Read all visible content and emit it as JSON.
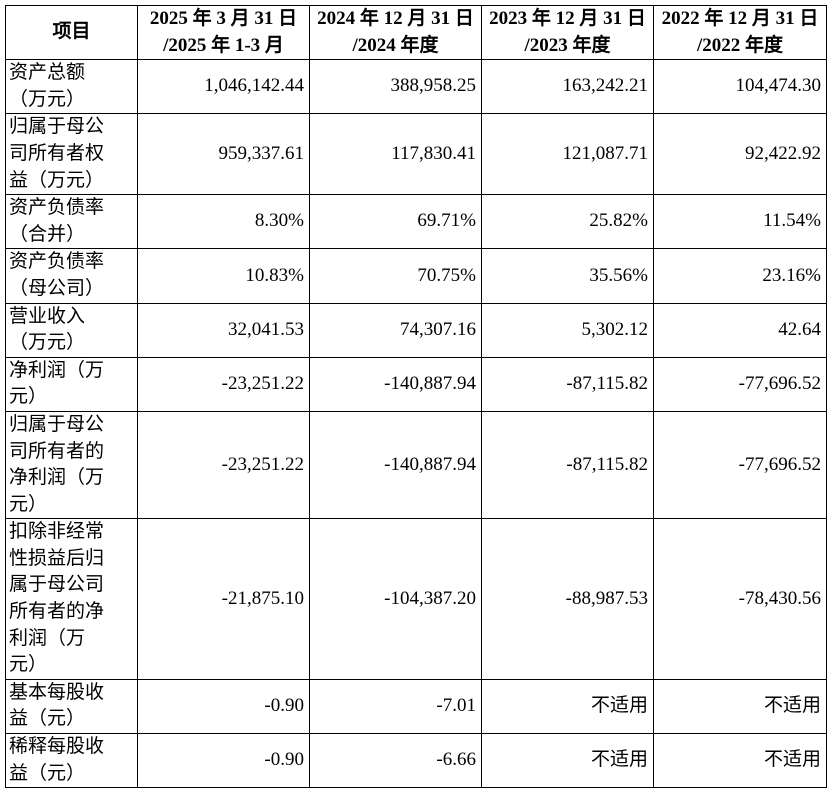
{
  "table": {
    "header": [
      [
        "项目"
      ],
      [
        "2025 年 3 月 31 日",
        "/2025 年 1-3 月"
      ],
      [
        "2024 年 12 月 31 日",
        "/2024 年度"
      ],
      [
        "2023 年 12 月 31 日",
        "/2023 年度"
      ],
      [
        "2022 年 12 月 31 日",
        "/2022 年度"
      ]
    ],
    "rows": [
      [
        "资产总额（万元）",
        "1,046,142.44",
        "388,958.25",
        "163,242.21",
        "104,474.30"
      ],
      [
        "归属于母公司所有者权益（万元）",
        "959,337.61",
        "117,830.41",
        "121,087.71",
        "92,422.92"
      ],
      [
        "资产负债率（合并）",
        "8.30%",
        "69.71%",
        "25.82%",
        "11.54%"
      ],
      [
        "资产负债率（母公司）",
        "10.83%",
        "70.75%",
        "35.56%",
        "23.16%"
      ],
      [
        "营业收入（万元）",
        "32,041.53",
        "74,307.16",
        "5,302.12",
        "42.64"
      ],
      [
        "净利润（万元）",
        "-23,251.22",
        "-140,887.94",
        "-87,115.82",
        "-77,696.52"
      ],
      [
        "归属于母公司所有者的净利润（万元）",
        "-23,251.22",
        "-140,887.94",
        "-87,115.82",
        "-77,696.52"
      ],
      [
        "扣除非经常性损益后归属于母公司所有者的净利润（万元）",
        "-21,875.10",
        "-104,387.20",
        "-88,987.53",
        "-78,430.56"
      ],
      [
        "基本每股收益（元）",
        "-0.90",
        "-7.01",
        "不适用",
        "不适用"
      ],
      [
        "稀释每股收益（元）",
        "-0.90",
        "-6.66",
        "不适用",
        "不适用"
      ]
    ]
  }
}
